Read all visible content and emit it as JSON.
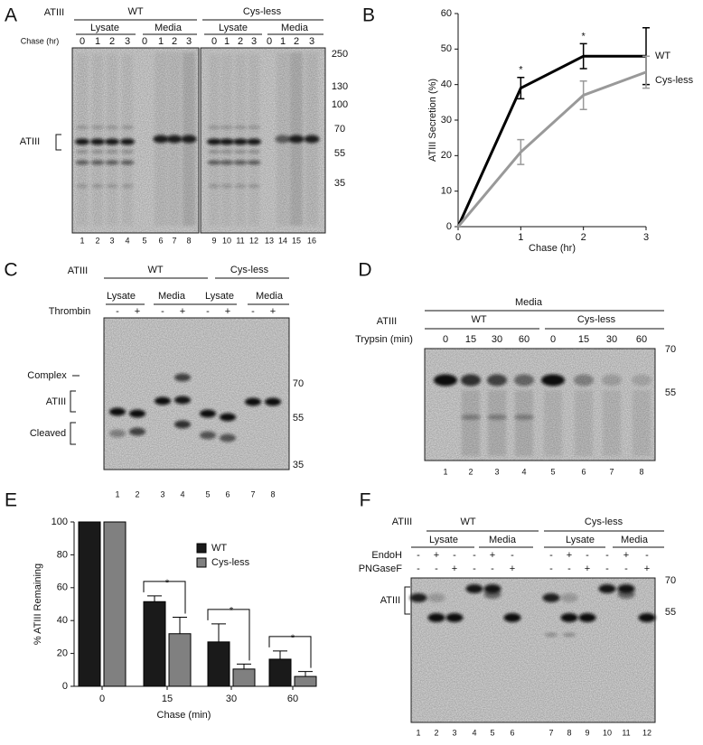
{
  "panels": {
    "A": {
      "letter": "A",
      "protein": "ATIII",
      "groups": [
        "WT",
        "Cys-less"
      ],
      "fractions": [
        "Lysate",
        "Media",
        "Lysate",
        "Media"
      ],
      "chase_label": "Chase (hr)",
      "chase_times": [
        0,
        1,
        2,
        3,
        0,
        1,
        2,
        3,
        0,
        1,
        2,
        3,
        0,
        1,
        2,
        3
      ],
      "band_label": "ATIII",
      "markers": [
        250,
        130,
        100,
        70,
        55,
        35
      ],
      "lanes": [
        1,
        2,
        3,
        4,
        5,
        6,
        7,
        8,
        9,
        10,
        11,
        12,
        13,
        14,
        15,
        16
      ]
    },
    "C": {
      "letter": "C",
      "protein": "ATIII",
      "groups": [
        "WT",
        "Cys-less"
      ],
      "fractions": [
        "Lysate",
        "Media",
        "Lysate",
        "Media"
      ],
      "treatment_label": "Thrombin",
      "treatment": [
        "-",
        "+",
        "-",
        "+",
        "-",
        "+",
        "-",
        "+"
      ],
      "band_labels": [
        "Complex",
        "ATIII",
        "Cleaved"
      ],
      "markers": [
        70,
        55,
        35
      ],
      "lanes": [
        1,
        2,
        3,
        4,
        5,
        6,
        7,
        8
      ]
    },
    "D": {
      "letter": "D",
      "header": "Media",
      "protein": "ATIII",
      "groups": [
        "WT",
        "Cys-less"
      ],
      "treatment_label": "Trypsin (min)",
      "times": [
        0,
        15,
        30,
        60,
        0,
        15,
        30,
        60
      ],
      "markers": [
        70,
        55
      ],
      "lanes": [
        1,
        2,
        3,
        4,
        5,
        6,
        7,
        8
      ]
    },
    "F": {
      "letter": "F",
      "protein": "ATIII",
      "groups": [
        "WT",
        "Cys-less"
      ],
      "fractions": [
        "Lysate",
        "Media",
        "Lysate",
        "Media"
      ],
      "treatments": [
        {
          "label": "EndoH",
          "signs": [
            "-",
            "+",
            "-",
            "-",
            "+",
            "-",
            "-",
            "+",
            "-",
            "-",
            "+",
            "-"
          ]
        },
        {
          "label": "PNGaseF",
          "signs": [
            "-",
            "-",
            "+",
            "-",
            "-",
            "+",
            "-",
            "-",
            "+",
            "-",
            "-",
            "+"
          ]
        }
      ],
      "band_label": "ATIII",
      "markers": [
        70,
        55
      ],
      "lanes": [
        1,
        2,
        3,
        4,
        5,
        6,
        7,
        8,
        9,
        10,
        11,
        12
      ]
    }
  },
  "chart_data": [
    {
      "type": "line",
      "letter": "B",
      "xlabel": "Chase (hr)",
      "ylabel": "ATIII Secretion (%)",
      "x": [
        0,
        1,
        2,
        3
      ],
      "xlim": [
        0,
        3
      ],
      "xticks": [
        0,
        1,
        2,
        3
      ],
      "ylim": [
        0,
        60
      ],
      "yticks": [
        0,
        10,
        20,
        30,
        40,
        50,
        60
      ],
      "series": [
        {
          "name": "WT",
          "color": "#000000",
          "values": [
            0,
            39,
            48,
            48
          ],
          "errors": [
            0,
            3,
            3.5,
            8
          ]
        },
        {
          "name": "Cys-less",
          "color": "#999999",
          "values": [
            0,
            21,
            37,
            43.5
          ],
          "errors": [
            0,
            3.5,
            4,
            4.5
          ]
        }
      ],
      "annotations": [
        "*",
        "*"
      ]
    },
    {
      "type": "bar",
      "letter": "E",
      "xlabel": "Chase (min)",
      "ylabel": "% ATIII Remaining",
      "categories": [
        "0",
        "15",
        "30",
        "60"
      ],
      "ylim": [
        0,
        100
      ],
      "yticks": [
        0,
        20,
        40,
        60,
        80,
        100
      ],
      "series": [
        {
          "name": "WT",
          "color": "#1a1a1a",
          "values": [
            100,
            51.5,
            27,
            16.5
          ],
          "errors": [
            0,
            3.5,
            11,
            5
          ]
        },
        {
          "name": "Cys-less",
          "color": "#808080",
          "values": [
            100,
            32,
            10.5,
            6
          ],
          "errors": [
            0,
            10,
            3,
            3
          ]
        }
      ],
      "annotations": [
        "*",
        "*",
        "*"
      ]
    }
  ]
}
